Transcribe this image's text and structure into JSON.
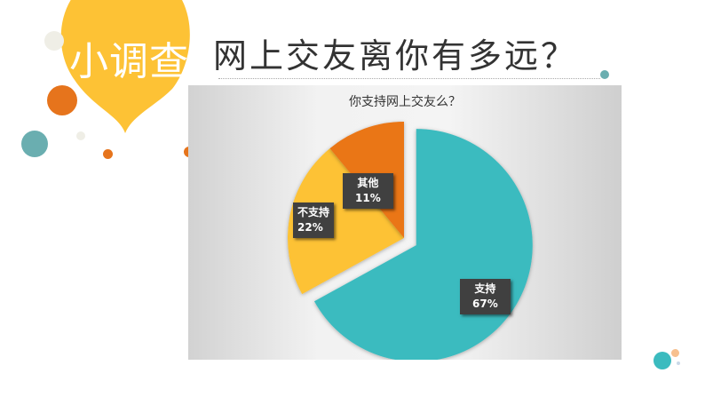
{
  "header": {
    "badge": "小调查",
    "title": "网上交友离你有多远？"
  },
  "chart_data": {
    "type": "pie",
    "title": "你支持网上交友么？",
    "slices": [
      {
        "label": "支持",
        "value": 67,
        "display": "67%",
        "color": "#3bbbbf",
        "exploded": true
      },
      {
        "label": "不支持",
        "value": 22,
        "display": "22%",
        "color": "#fdc235"
      },
      {
        "label": "其他",
        "value": 11,
        "display": "11%",
        "color": "#ea7616"
      }
    ]
  },
  "colors": {
    "accent_yellow": "#fdc235",
    "accent_orange": "#ea7616",
    "accent_teal": "#6aaeb0"
  }
}
